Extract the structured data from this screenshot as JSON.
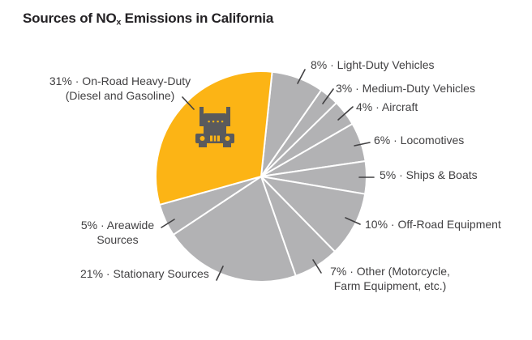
{
  "title": {
    "pre": "Sources of NO",
    "sub": "x",
    "post": " Emissions in California"
  },
  "colors": {
    "highlight": "#FCB415",
    "slice": "#B2B2B4",
    "divider": "#FFFFFF",
    "label_text": "#414042",
    "leader_line": "#414042",
    "title_text": "#232124",
    "truck": "#5A5A5C",
    "background": "#FFFFFF"
  },
  "chart_data": {
    "type": "pie",
    "title": "Sources of NOx Emissions in California",
    "unit": "%",
    "start_angle_deg": 6,
    "direction": "clockwise",
    "legend_position": "callout-labels",
    "total": 100,
    "slices": [
      {
        "label": "Light-Duty Vehicles",
        "value": 8,
        "display_lines": [
          "8% · Light-Duty Vehicles"
        ],
        "highlighted": false
      },
      {
        "label": "Medium-Duty Vehicles",
        "value": 3,
        "display_lines": [
          "3% · Medium-Duty Vehicles"
        ],
        "highlighted": false
      },
      {
        "label": "Aircraft",
        "value": 4,
        "display_lines": [
          "4% · Aircraft"
        ],
        "highlighted": false
      },
      {
        "label": "Locomotives",
        "value": 6,
        "display_lines": [
          "6% · Locomotives"
        ],
        "highlighted": false
      },
      {
        "label": "Ships & Boats",
        "value": 5,
        "display_lines": [
          "5% · Ships & Boats"
        ],
        "highlighted": false
      },
      {
        "label": "Off-Road Equipment",
        "value": 10,
        "display_lines": [
          "10% · Off-Road Equipment"
        ],
        "highlighted": false
      },
      {
        "label": "Other (Motorcycle, Farm Equipment, etc.)",
        "value": 7,
        "display_lines": [
          "7% · Other (Motorcycle,",
          "Farm Equipment, etc.)"
        ],
        "highlighted": false
      },
      {
        "label": "Stationary Sources",
        "value": 21,
        "display_lines": [
          "21% · Stationary Sources"
        ],
        "highlighted": false
      },
      {
        "label": "Areawide Sources",
        "value": 5,
        "display_lines": [
          "5% · Areawide",
          "Sources"
        ],
        "highlighted": false
      },
      {
        "label": "On-Road Heavy-Duty (Diesel and Gasoline)",
        "value": 31,
        "display_lines": [
          "31% · On-Road Heavy-Duty",
          "(Diesel and Gasoline)"
        ],
        "highlighted": true,
        "icon": "truck-icon"
      }
    ]
  }
}
